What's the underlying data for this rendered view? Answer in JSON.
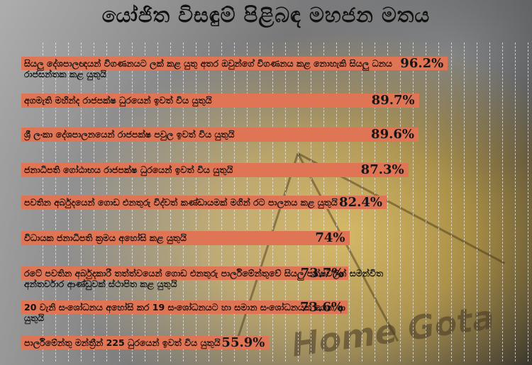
{
  "title": "යෝජිත විසඳුම් පිළිබඳ මහජන මතය",
  "chart_data": {
    "type": "bar",
    "orientation": "horizontal",
    "title": "යෝජිත විසඳුම් පිළිබඳ මහජන මතය",
    "categories": [
      "සියලු දේශපාලඥයන් විගණනයට ලක් කළ යුතු අතර ඔවුන්ගේ විගණනය කළ නොහැකි සියලු ධනය රාජසන්තක කළ යුතුයි",
      "අගමැති මහින්ද රාජපක්ෂ ධුරයෙන් ඉවත් විය යුතුයි",
      "ශ්‍රී ලංකා දේශපාලනයෙන් රාජපක්ෂ පවුල ඉවත් විය යුතුයි",
      "ජනාධිපති ගෝඨාභය රාජපක්ෂ ධුරයෙන් ඉවත් විය යුතුයි",
      "පවතින අර්බුදයෙන් ගොඩ එනතුරු විද්වත් කණ්ඩායමක් මගින් රට පාලනය කළ යුතුයි",
      "විධායක ජනාධිපති ක්‍රමය අහෝසි කළ යුතුයි",
      "රටේ පවතින අර්බුදකාරී තත්ත්වයෙන් ගොඩ එනතුරු පාර්ලිමේන්තුවේ සියලු පක්ෂවලින් සමන්විත අන්තර්වාර ආණ්ඩුවක් ස්ථාපිත කළ යුතුයි",
      "20 වැනි සංශෝධනය අහෝසි කර 19 සංශෝධනයට හා සමාන සංශෝධනයක් ගෙන ආ යුතුයි",
      "පාර්ලිමේන්තු මන්ත්‍රීන් 225 ධුරයෙන් ඉවත් විය යුතුයි"
    ],
    "values": [
      96.2,
      89.7,
      89.6,
      87.3,
      82.4,
      74,
      73.7,
      73.6,
      55.9
    ],
    "value_labels": [
      "96.2%",
      "89.7%",
      "89.6%",
      "87.3%",
      "82.4%",
      "74%",
      "73.7%",
      "73.6%",
      "55.9%"
    ],
    "xlim": [
      0,
      100
    ],
    "grid": true,
    "bar_color": "#e07555"
  },
  "watermark": "Home Gota"
}
